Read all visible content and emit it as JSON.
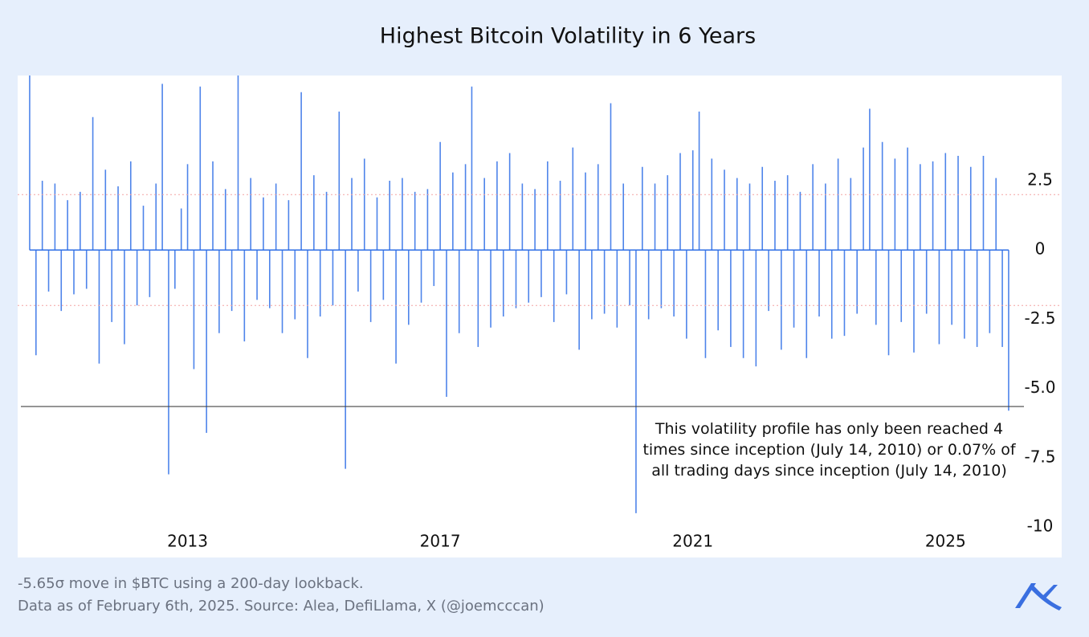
{
  "chart_data": {
    "type": "spike",
    "title": "Highest Bitcoin Volatility in 6 Years",
    "annotation": "This volatility profile has only been reached 4 times since inception (July 14, 2010) or 0.07% of all trading days since inception (July 14, 2010)",
    "footnotes": [
      "-5.65σ move in $BTC using a 200-day lookback.",
      "Data as of February 6th, 2025. Source: Alea, DefiLlama, X (@joemcccan)"
    ],
    "xlim": [
      2010.31,
      2026.84
    ],
    "xticks": [
      2013,
      2017,
      2021,
      2025
    ],
    "ylim": [
      -11.1,
      6.3
    ],
    "yticks": [
      2.5,
      0,
      -2.5,
      {
        "value": -5,
        "label": "-5.0"
      },
      -7.5,
      -10
    ],
    "bands": [
      2,
      -2
    ],
    "band_color": "#f4a3a3",
    "threshold": -5.65,
    "threshold_color": "#444444",
    "color": "#2f6fe6",
    "x": [
      2010.5,
      2010.6,
      2010.7,
      2010.8,
      2010.9,
      2011.0,
      2011.1,
      2011.2,
      2011.3,
      2011.4,
      2011.5,
      2011.6,
      2011.7,
      2011.8,
      2011.9,
      2012.0,
      2012.1,
      2012.2,
      2012.3,
      2012.4,
      2012.5,
      2012.6,
      2012.7,
      2012.8,
      2012.9,
      2013.0,
      2013.1,
      2013.2,
      2013.3,
      2013.4,
      2013.5,
      2013.6,
      2013.7,
      2013.8,
      2013.9,
      2014.0,
      2014.1,
      2014.2,
      2014.3,
      2014.4,
      2014.5,
      2014.6,
      2014.7,
      2014.8,
      2014.9,
      2015.0,
      2015.1,
      2015.2,
      2015.3,
      2015.4,
      2015.5,
      2015.6,
      2015.7,
      2015.8,
      2015.9,
      2016.0,
      2016.1,
      2016.2,
      2016.3,
      2016.4,
      2016.5,
      2016.6,
      2016.7,
      2016.8,
      2016.9,
      2017.0,
      2017.1,
      2017.2,
      2017.3,
      2017.4,
      2017.5,
      2017.6,
      2017.7,
      2017.8,
      2017.9,
      2018.0,
      2018.1,
      2018.2,
      2018.3,
      2018.4,
      2018.5,
      2018.6,
      2018.7,
      2018.8,
      2018.9,
      2019.0,
      2019.1,
      2019.2,
      2019.3,
      2019.4,
      2019.5,
      2019.6,
      2019.7,
      2019.8,
      2019.9,
      2020.0,
      2020.1,
      2020.2,
      2020.3,
      2020.4,
      2020.5,
      2020.6,
      2020.7,
      2020.8,
      2020.9,
      2021.0,
      2021.1,
      2021.2,
      2021.3,
      2021.4,
      2021.5,
      2021.6,
      2021.7,
      2021.8,
      2021.9,
      2022.0,
      2022.1,
      2022.2,
      2022.3,
      2022.4,
      2022.5,
      2022.6,
      2022.7,
      2022.8,
      2022.9,
      2023.0,
      2023.1,
      2023.2,
      2023.3,
      2023.4,
      2023.5,
      2023.6,
      2023.7,
      2023.8,
      2023.9,
      2024.0,
      2024.1,
      2024.2,
      2024.3,
      2024.4,
      2024.5,
      2024.6,
      2024.7,
      2024.8,
      2024.9,
      2025.0,
      2025.1,
      2025.2,
      2025.3,
      2025.4,
      2025.5,
      2025.6,
      2025.7,
      2025.8,
      2025.9,
      2026.0
    ],
    "values": [
      6.3,
      -3.8,
      2.5,
      -1.5,
      2.4,
      -2.2,
      1.8,
      -1.6,
      2.1,
      -1.4,
      4.8,
      -4.1,
      2.9,
      -2.6,
      2.3,
      -3.4,
      3.2,
      -2.0,
      1.6,
      -1.7,
      2.4,
      6.0,
      -8.1,
      -1.4,
      1.5,
      3.1,
      -4.3,
      5.9,
      -6.6,
      3.2,
      -3.0,
      2.2,
      -2.2,
      6.3,
      -3.3,
      2.6,
      -1.8,
      1.9,
      -2.1,
      2.4,
      -3.0,
      1.8,
      -2.5,
      5.7,
      -3.9,
      2.7,
      -2.4,
      2.1,
      -2.0,
      5.0,
      -7.9,
      2.6,
      -1.5,
      3.3,
      -2.6,
      1.9,
      -1.8,
      2.5,
      -4.1,
      2.6,
      -2.7,
      2.1,
      -1.9,
      2.2,
      -1.3,
      3.9,
      -5.3,
      2.8,
      -3.0,
      3.1,
      5.9,
      -3.5,
      2.6,
      -2.8,
      3.2,
      -2.4,
      3.5,
      -2.1,
      2.4,
      -1.9,
      2.2,
      -1.7,
      3.2,
      -2.6,
      2.5,
      -1.6,
      3.7,
      -3.6,
      2.8,
      -2.5,
      3.1,
      -2.3,
      5.3,
      -2.8,
      2.4,
      -2.0,
      -9.5,
      3.0,
      -2.5,
      2.4,
      -2.1,
      2.7,
      -2.4,
      3.5,
      -3.2,
      3.6,
      5.0,
      -3.9,
      3.3,
      -2.9,
      2.9,
      -3.5,
      2.6,
      -3.9,
      2.4,
      -4.2,
      3.0,
      -2.2,
      2.5,
      -3.6,
      2.7,
      -2.8,
      2.1,
      -3.9,
      3.1,
      -2.4,
      2.4,
      -3.2,
      3.3,
      -3.1,
      2.6,
      -2.3,
      3.7,
      5.1,
      -2.7,
      3.9,
      -3.8,
      3.3,
      -2.6,
      3.7,
      -3.7,
      3.1,
      -2.3,
      3.2,
      -3.4,
      3.5,
      -2.7,
      3.4,
      -3.2,
      3.0,
      -3.5,
      3.4,
      -3.0,
      2.6,
      -3.5,
      -5.8
    ]
  }
}
